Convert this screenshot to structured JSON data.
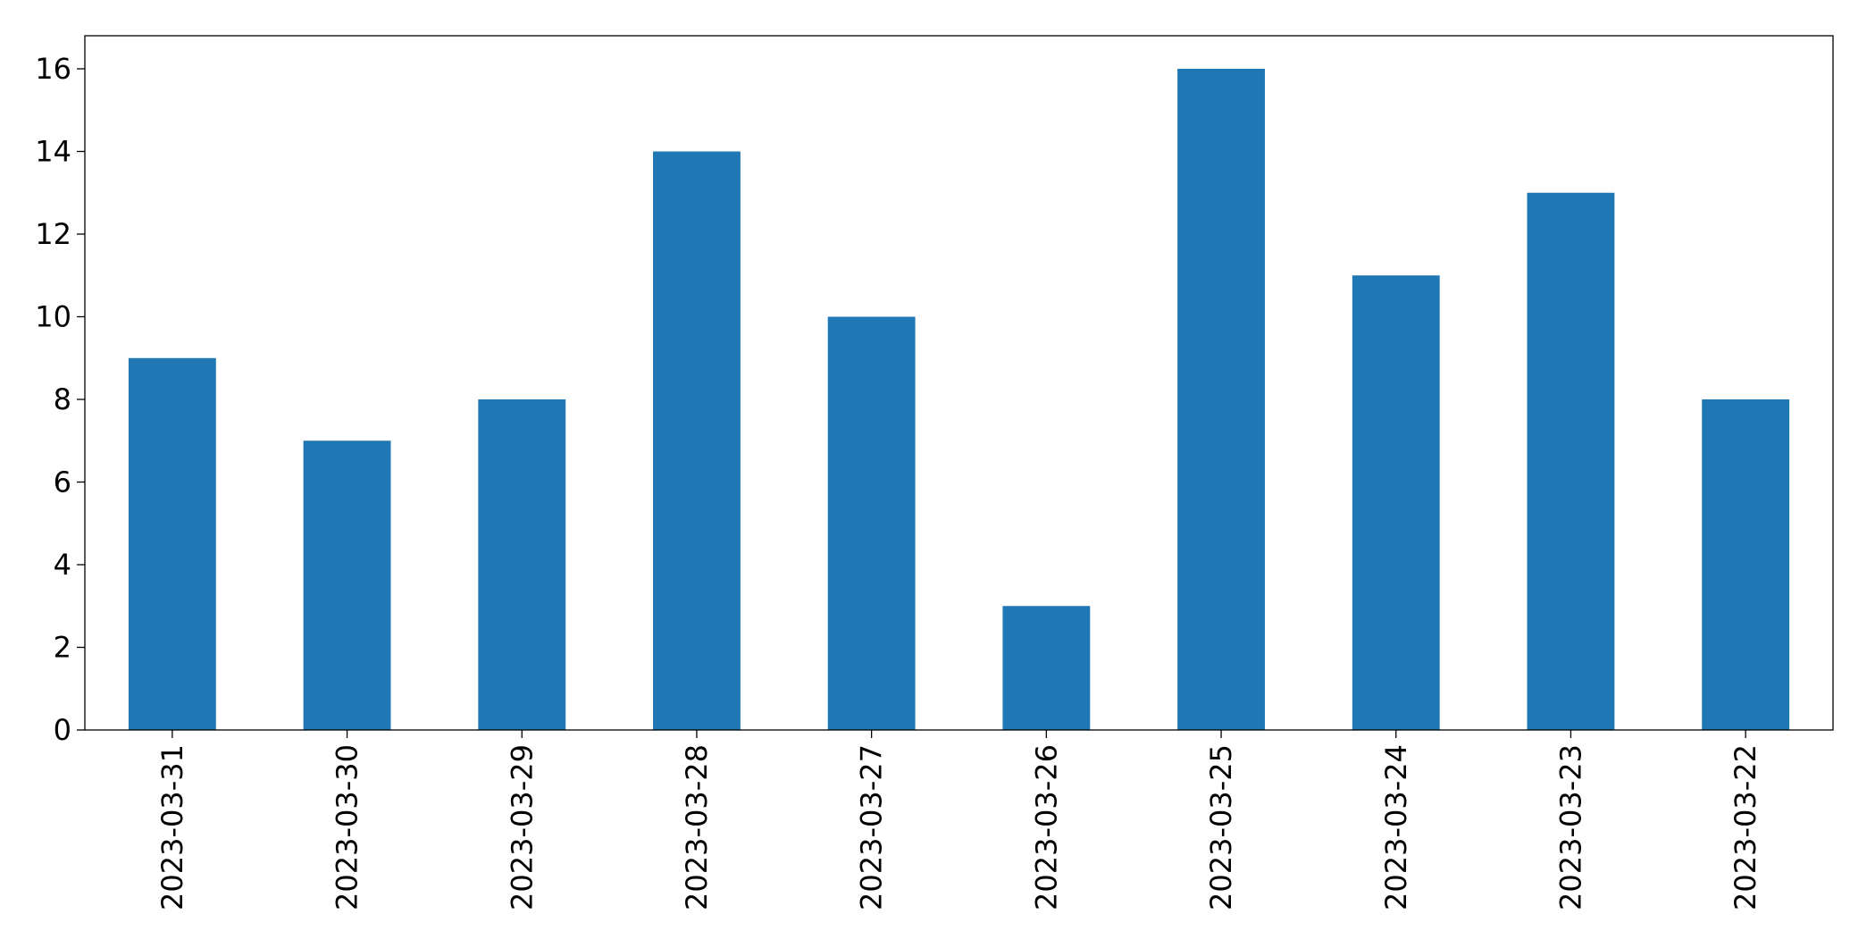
{
  "chart_data": {
    "type": "bar",
    "categories": [
      "2023-03-31",
      "2023-03-30",
      "2023-03-29",
      "2023-03-28",
      "2023-03-27",
      "2023-03-26",
      "2023-03-25",
      "2023-03-24",
      "2023-03-23",
      "2023-03-22"
    ],
    "values": [
      9,
      7,
      8,
      14,
      10,
      3,
      16,
      11,
      13,
      8
    ],
    "color": "#1f77b4",
    "ylim": [
      0,
      16.8
    ],
    "yticks": [
      0,
      2,
      4,
      6,
      8,
      10,
      12,
      14,
      16
    ],
    "grid": false
  }
}
